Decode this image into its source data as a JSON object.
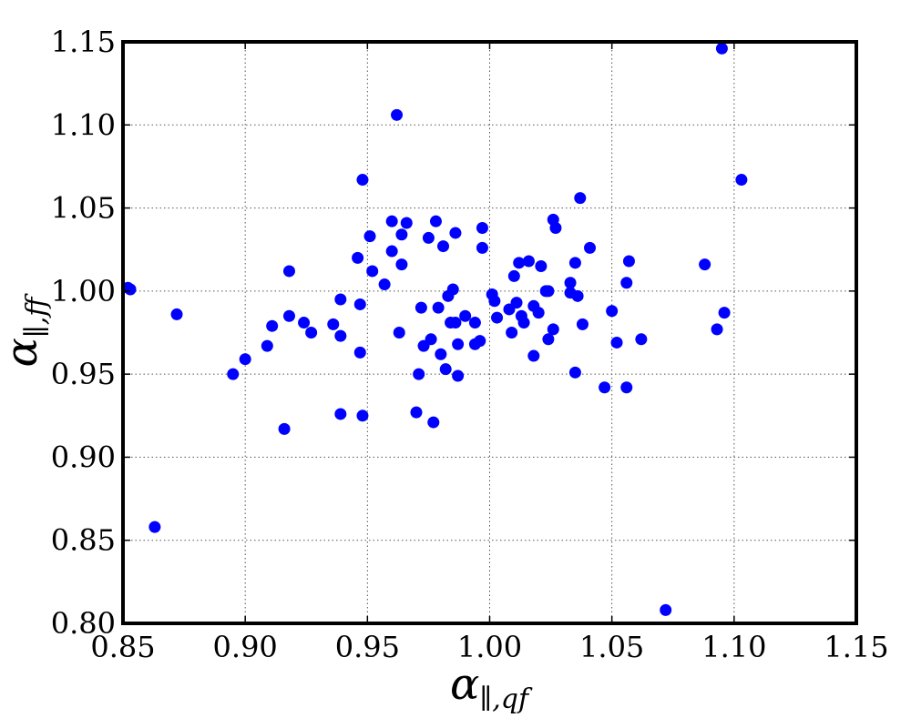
{
  "chart_data": {
    "type": "scatter",
    "xlabel": "α∥,qf",
    "ylabel": "α∥,ff",
    "xlim": [
      0.85,
      1.15
    ],
    "ylim": [
      0.8,
      1.15
    ],
    "xticks": [
      "0.85",
      "0.90",
      "0.95",
      "1.00",
      "1.05",
      "1.10",
      "1.15"
    ],
    "yticks": [
      "0.80",
      "0.85",
      "0.90",
      "0.95",
      "1.00",
      "1.05",
      "1.10",
      "1.15"
    ],
    "grid": true,
    "color": "#0000ff",
    "points": [
      [
        0.852,
        1.002
      ],
      [
        0.853,
        1.001
      ],
      [
        0.863,
        0.858
      ],
      [
        0.872,
        0.986
      ],
      [
        0.895,
        0.95
      ],
      [
        0.9,
        0.959
      ],
      [
        0.909,
        0.967
      ],
      [
        0.911,
        0.979
      ],
      [
        0.916,
        0.917
      ],
      [
        0.918,
        1.012
      ],
      [
        0.918,
        0.985
      ],
      [
        0.924,
        0.981
      ],
      [
        0.927,
        0.975
      ],
      [
        0.936,
        0.98
      ],
      [
        0.939,
        0.973
      ],
      [
        0.939,
        0.995
      ],
      [
        0.939,
        0.926
      ],
      [
        0.946,
        1.02
      ],
      [
        0.947,
        0.992
      ],
      [
        0.947,
        0.963
      ],
      [
        0.948,
        1.067
      ],
      [
        0.948,
        0.925
      ],
      [
        0.951,
        1.033
      ],
      [
        0.952,
        1.012
      ],
      [
        0.957,
        1.004
      ],
      [
        0.96,
        1.042
      ],
      [
        0.96,
        1.024
      ],
      [
        0.962,
        1.106
      ],
      [
        0.963,
        0.975
      ],
      [
        0.964,
        1.034
      ],
      [
        0.964,
        1.016
      ],
      [
        0.966,
        1.041
      ],
      [
        0.97,
        0.927
      ],
      [
        0.971,
        0.95
      ],
      [
        0.972,
        0.99
      ],
      [
        0.973,
        0.967
      ],
      [
        0.975,
        1.032
      ],
      [
        0.976,
        0.971
      ],
      [
        0.977,
        0.921
      ],
      [
        0.978,
        1.042
      ],
      [
        0.979,
        0.99
      ],
      [
        0.98,
        0.962
      ],
      [
        0.981,
        1.027
      ],
      [
        0.982,
        0.953
      ],
      [
        0.983,
        0.997
      ],
      [
        0.984,
        0.981
      ],
      [
        0.985,
        1.001
      ],
      [
        0.986,
        0.981
      ],
      [
        0.986,
        1.035
      ],
      [
        0.987,
        0.968
      ],
      [
        0.987,
        0.949
      ],
      [
        0.99,
        0.985
      ],
      [
        0.994,
        0.981
      ],
      [
        0.994,
        0.968
      ],
      [
        0.996,
        0.97
      ],
      [
        0.997,
        1.038
      ],
      [
        0.997,
        1.026
      ],
      [
        1.001,
        0.998
      ],
      [
        1.002,
        0.994
      ],
      [
        1.003,
        0.984
      ],
      [
        1.008,
        0.989
      ],
      [
        1.009,
        0.975
      ],
      [
        1.01,
        1.009
      ],
      [
        1.011,
        0.993
      ],
      [
        1.012,
        1.017
      ],
      [
        1.013,
        0.985
      ],
      [
        1.014,
        0.981
      ],
      [
        1.016,
        1.018
      ],
      [
        1.018,
        0.991
      ],
      [
        1.018,
        0.961
      ],
      [
        1.02,
        0.987
      ],
      [
        1.021,
        1.015
      ],
      [
        1.023,
        1.0
      ],
      [
        1.024,
        0.971
      ],
      [
        1.024,
        1.0
      ],
      [
        1.026,
        1.043
      ],
      [
        1.026,
        0.977
      ],
      [
        1.027,
        1.038
      ],
      [
        1.033,
        1.005
      ],
      [
        1.033,
        0.999
      ],
      [
        1.035,
        0.951
      ],
      [
        1.035,
        1.017
      ],
      [
        1.036,
        0.997
      ],
      [
        1.037,
        1.056
      ],
      [
        1.038,
        0.98
      ],
      [
        1.041,
        1.026
      ],
      [
        1.047,
        0.942
      ],
      [
        1.05,
        0.988
      ],
      [
        1.052,
        0.969
      ],
      [
        1.056,
        1.005
      ],
      [
        1.056,
        0.942
      ],
      [
        1.057,
        1.018
      ],
      [
        1.062,
        0.971
      ],
      [
        1.072,
        0.808
      ],
      [
        1.088,
        1.016
      ],
      [
        1.093,
        0.977
      ],
      [
        1.095,
        1.146
      ],
      [
        1.096,
        0.987
      ],
      [
        1.103,
        1.067
      ]
    ]
  }
}
